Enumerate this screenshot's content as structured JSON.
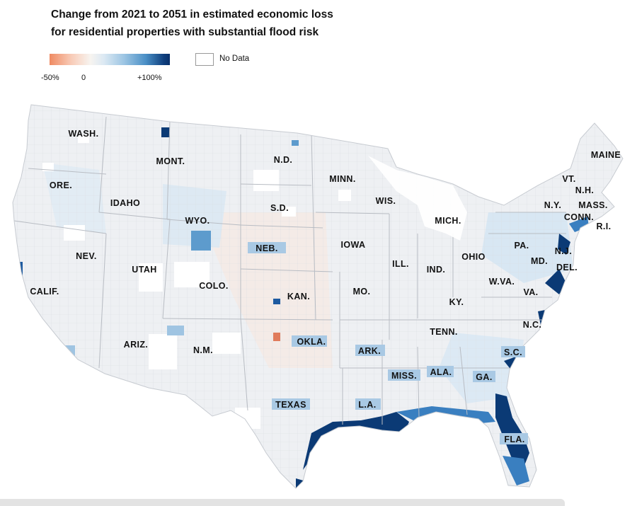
{
  "title": {
    "line1": "Change from 2021 to 2051 in estimated economic loss",
    "line2": "for residential properties with substantial flood risk"
  },
  "legend": {
    "ticks": [
      "-50%",
      "0",
      "+100%"
    ],
    "no_data_label": "No Data",
    "colors": {
      "negative": "#ef8a62",
      "zero": "#f7f4f0",
      "positive_max": "#08306b",
      "no_data": "#ffffff"
    }
  },
  "states": [
    {
      "abbr": "WASH."
    },
    {
      "abbr": "MONT."
    },
    {
      "abbr": "N.D."
    },
    {
      "abbr": "MINN."
    },
    {
      "abbr": "MAINE"
    },
    {
      "abbr": "ORE."
    },
    {
      "abbr": "IDAHO"
    },
    {
      "abbr": "S.D."
    },
    {
      "abbr": "WIS."
    },
    {
      "abbr": "VT."
    },
    {
      "abbr": "N.H."
    },
    {
      "abbr": "N.Y."
    },
    {
      "abbr": "MASS."
    },
    {
      "abbr": "CONN."
    },
    {
      "abbr": "R.I."
    },
    {
      "abbr": "WYO."
    },
    {
      "abbr": "MICH."
    },
    {
      "abbr": "NEB."
    },
    {
      "abbr": "IOWA"
    },
    {
      "abbr": "PA."
    },
    {
      "abbr": "N.J."
    },
    {
      "abbr": "NEV."
    },
    {
      "abbr": "UTAH"
    },
    {
      "abbr": "OHIO"
    },
    {
      "abbr": "MD."
    },
    {
      "abbr": "DEL."
    },
    {
      "abbr": "ILL."
    },
    {
      "abbr": "IND."
    },
    {
      "abbr": "COLO."
    },
    {
      "abbr": "W.VA."
    },
    {
      "abbr": "CALIF."
    },
    {
      "abbr": "KAN."
    },
    {
      "abbr": "MO."
    },
    {
      "abbr": "VA."
    },
    {
      "abbr": "KY."
    },
    {
      "abbr": "N.C."
    },
    {
      "abbr": "TENN."
    },
    {
      "abbr": "ARIZ."
    },
    {
      "abbr": "OKLA."
    },
    {
      "abbr": "N.M."
    },
    {
      "abbr": "ARK."
    },
    {
      "abbr": "S.C."
    },
    {
      "abbr": "MISS."
    },
    {
      "abbr": "ALA."
    },
    {
      "abbr": "GA."
    },
    {
      "abbr": "TEXAS"
    },
    {
      "abbr": "L.A."
    },
    {
      "abbr": "FLA."
    }
  ]
}
